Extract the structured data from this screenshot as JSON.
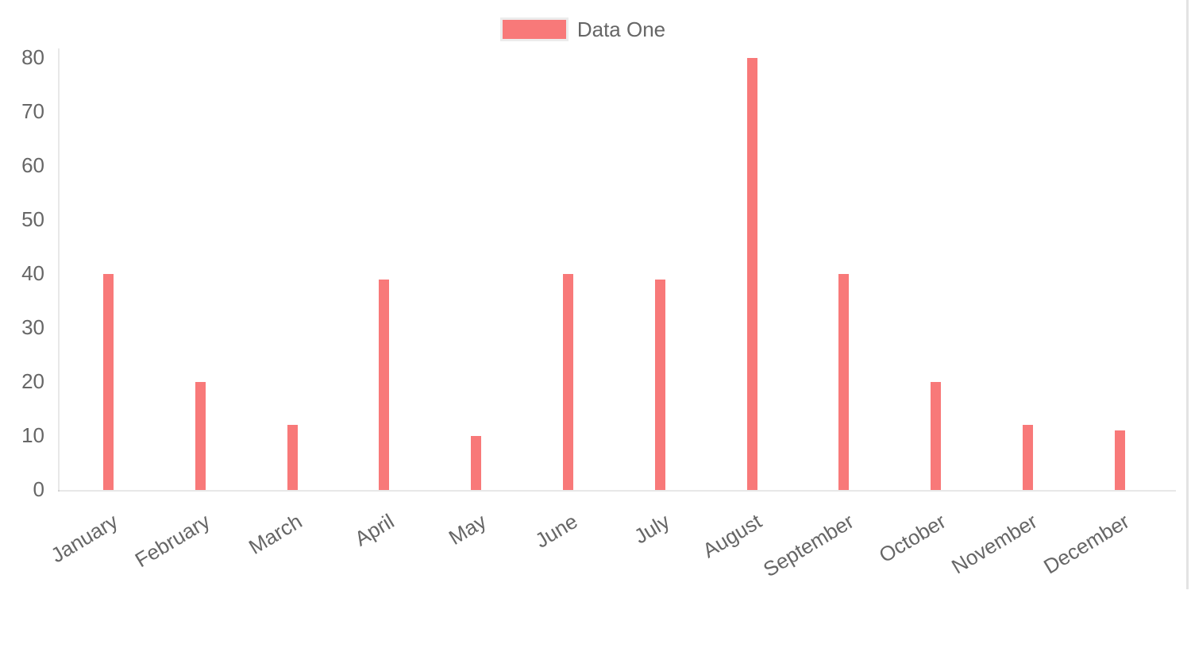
{
  "legend": {
    "label": "Data One",
    "swatch_color": "#f87979",
    "position": "top-center"
  },
  "chart_data": {
    "type": "bar",
    "title": "",
    "xlabel": "",
    "ylabel": "",
    "categories": [
      "January",
      "February",
      "March",
      "April",
      "May",
      "June",
      "July",
      "August",
      "September",
      "October",
      "November",
      "December"
    ],
    "series": [
      {
        "name": "Data One",
        "color": "#f87979",
        "values": [
          40,
          20,
          12,
          39,
          10,
          40,
          39,
          80,
          40,
          20,
          12,
          11
        ]
      }
    ],
    "ylim": [
      0,
      80
    ],
    "yticks": [
      0,
      10,
      20,
      30,
      40,
      50,
      60,
      70,
      80
    ],
    "x_tick_rotation_deg": -31,
    "grid": "axis-borders-only",
    "legend_position": "top"
  },
  "colors": {
    "bar_fill": "#f87979",
    "tick_text": "#666666",
    "axis_border": "rgba(0,0,0,0.09)",
    "legend_box_border": "#ececec",
    "right_edge_line": "#e3e3e3"
  }
}
